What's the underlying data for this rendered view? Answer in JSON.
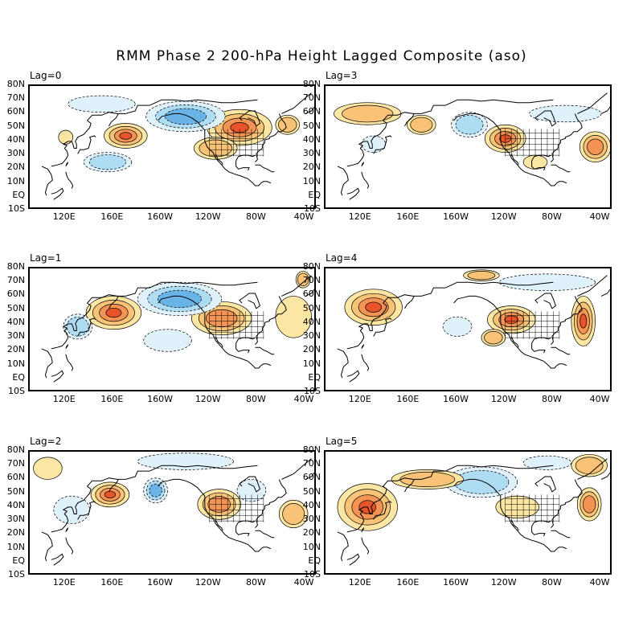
{
  "title": "RMM Phase 2 200-hPa Height Lagged Composite (aso)",
  "lat_labels": [
    "80N",
    "70N",
    "60N",
    "50N",
    "40N",
    "30N",
    "20N",
    "10N",
    "EQ",
    "10S"
  ],
  "lon_labels": [
    "120E",
    "160E",
    "160W",
    "120W",
    "80W",
    "40W"
  ],
  "colors": {
    "pos1": "#fbe7a3",
    "pos2": "#f8c277",
    "pos3": "#f39454",
    "pos4": "#e8532a",
    "neg1": "#dff2fb",
    "neg2": "#aedcf3",
    "neg3": "#6ab3e7",
    "land": "#000000"
  },
  "panels": [
    {
      "label": "Lag=0",
      "anomalies": [
        {
          "lon": 170,
          "lat": 44,
          "rx": 18,
          "ry": 9,
          "sign": 1,
          "level": 4
        },
        {
          "lon": -95,
          "lat": 50,
          "rx": 27,
          "ry": 13,
          "sign": 1,
          "level": 4
        },
        {
          "lon": -140,
          "lat": 58,
          "rx": 33,
          "ry": 11,
          "sign": -1,
          "level": 3
        },
        {
          "lon": 150,
          "lat": 67,
          "rx": 28,
          "ry": 6,
          "sign": -1,
          "level": 1
        },
        {
          "lon": 155,
          "lat": 25,
          "rx": 20,
          "ry": 7,
          "sign": -1,
          "level": 2
        },
        {
          "lon": -115,
          "lat": 35,
          "rx": 18,
          "ry": 8,
          "sign": 1,
          "level": 2
        },
        {
          "lon": -55,
          "lat": 52,
          "rx": 10,
          "ry": 7,
          "sign": 1,
          "level": 2
        },
        {
          "lon": 120,
          "lat": 43,
          "rx": 6,
          "ry": 5,
          "sign": 1,
          "level": 1
        }
      ]
    },
    {
      "label": "Lag=3",
      "anomalies": [
        {
          "lon": -120,
          "lat": 42,
          "rx": 17,
          "ry": 10,
          "sign": 1,
          "level": 4
        },
        {
          "lon": -45,
          "lat": 36,
          "rx": 13,
          "ry": 11,
          "sign": 1,
          "level": 3
        },
        {
          "lon": -150,
          "lat": 52,
          "rx": 15,
          "ry": 9,
          "sign": -1,
          "level": 2
        },
        {
          "lon": 125,
          "lat": 60,
          "rx": 28,
          "ry": 8,
          "sign": 1,
          "level": 2
        },
        {
          "lon": 170,
          "lat": 52,
          "rx": 12,
          "ry": 7,
          "sign": 1,
          "level": 2
        },
        {
          "lon": -70,
          "lat": 60,
          "rx": 30,
          "ry": 6,
          "sign": -1,
          "level": 1
        },
        {
          "lon": 130,
          "lat": 38,
          "rx": 10,
          "ry": 6,
          "sign": -1,
          "level": 1
        },
        {
          "lon": -95,
          "lat": 25,
          "rx": 10,
          "ry": 5,
          "sign": 1,
          "level": 1
        }
      ]
    },
    {
      "label": "Lag=1",
      "anomalies": [
        {
          "lon": 160,
          "lat": 48,
          "rx": 23,
          "ry": 12,
          "sign": 1,
          "level": 4
        },
        {
          "lon": -110,
          "lat": 44,
          "rx": 25,
          "ry": 12,
          "sign": 1,
          "level": 3
        },
        {
          "lon": -145,
          "lat": 58,
          "rx": 35,
          "ry": 12,
          "sign": -1,
          "level": 3
        },
        {
          "lon": 130,
          "lat": 38,
          "rx": 12,
          "ry": 9,
          "sign": -1,
          "level": 2
        },
        {
          "lon": -50,
          "lat": 45,
          "rx": 15,
          "ry": 15,
          "sign": 1,
          "level": 1
        },
        {
          "lon": -155,
          "lat": 28,
          "rx": 20,
          "ry": 8,
          "sign": -1,
          "level": 1
        },
        {
          "lon": -42,
          "lat": 72,
          "rx": 6,
          "ry": 6,
          "sign": 1,
          "level": 2
        }
      ]
    },
    {
      "label": "Lag=4",
      "anomalies": [
        {
          "lon": 130,
          "lat": 52,
          "rx": 24,
          "ry": 13,
          "sign": 1,
          "level": 4
        },
        {
          "lon": -115,
          "lat": 43,
          "rx": 20,
          "ry": 10,
          "sign": 1,
          "level": 4
        },
        {
          "lon": -55,
          "lat": 42,
          "rx": 10,
          "ry": 18,
          "sign": 1,
          "level": 4
        },
        {
          "lon": -160,
          "lat": 38,
          "rx": 12,
          "ry": 7,
          "sign": -1,
          "level": 1
        },
        {
          "lon": -85,
          "lat": 70,
          "rx": 40,
          "ry": 6,
          "sign": -1,
          "level": 1
        },
        {
          "lon": -140,
          "lat": 75,
          "rx": 15,
          "ry": 4,
          "sign": 1,
          "level": 2
        },
        {
          "lon": -130,
          "lat": 30,
          "rx": 10,
          "ry": 6,
          "sign": 1,
          "level": 2
        }
      ]
    },
    {
      "label": "Lag=2",
      "anomalies": [
        {
          "lon": 157,
          "lat": 49,
          "rx": 16,
          "ry": 9,
          "sign": 1,
          "level": 4
        },
        {
          "lon": -112,
          "lat": 42,
          "rx": 18,
          "ry": 11,
          "sign": 1,
          "level": 3
        },
        {
          "lon": -165,
          "lat": 52,
          "rx": 10,
          "ry": 9,
          "sign": -1,
          "level": 3
        },
        {
          "lon": -140,
          "lat": 73,
          "rx": 40,
          "ry": 6,
          "sign": -1,
          "level": 1
        },
        {
          "lon": 125,
          "lat": 38,
          "rx": 15,
          "ry": 10,
          "sign": -1,
          "level": 1
        },
        {
          "lon": -50,
          "lat": 35,
          "rx": 12,
          "ry": 10,
          "sign": 1,
          "level": 2
        },
        {
          "lon": -85,
          "lat": 52,
          "rx": 12,
          "ry": 8,
          "sign": -1,
          "level": 1
        },
        {
          "lon": 105,
          "lat": 68,
          "rx": 12,
          "ry": 8,
          "sign": 1,
          "level": 1
        }
      ]
    },
    {
      "label": "Lag=5",
      "anomalies": [
        {
          "lon": 125,
          "lat": 40,
          "rx": 25,
          "ry": 17,
          "sign": 1,
          "level": 4
        },
        {
          "lon": -140,
          "lat": 58,
          "rx": 30,
          "ry": 11,
          "sign": -1,
          "level": 2
        },
        {
          "lon": -50,
          "lat": 42,
          "rx": 10,
          "ry": 12,
          "sign": 1,
          "level": 3
        },
        {
          "lon": 175,
          "lat": 60,
          "rx": 30,
          "ry": 7,
          "sign": 1,
          "level": 2
        },
        {
          "lon": -110,
          "lat": 40,
          "rx": 18,
          "ry": 8,
          "sign": 1,
          "level": 1
        },
        {
          "lon": -50,
          "lat": 70,
          "rx": 15,
          "ry": 8,
          "sign": 1,
          "level": 2
        },
        {
          "lon": -85,
          "lat": 72,
          "rx": 20,
          "ry": 5,
          "sign": -1,
          "level": 1
        }
      ]
    }
  ]
}
